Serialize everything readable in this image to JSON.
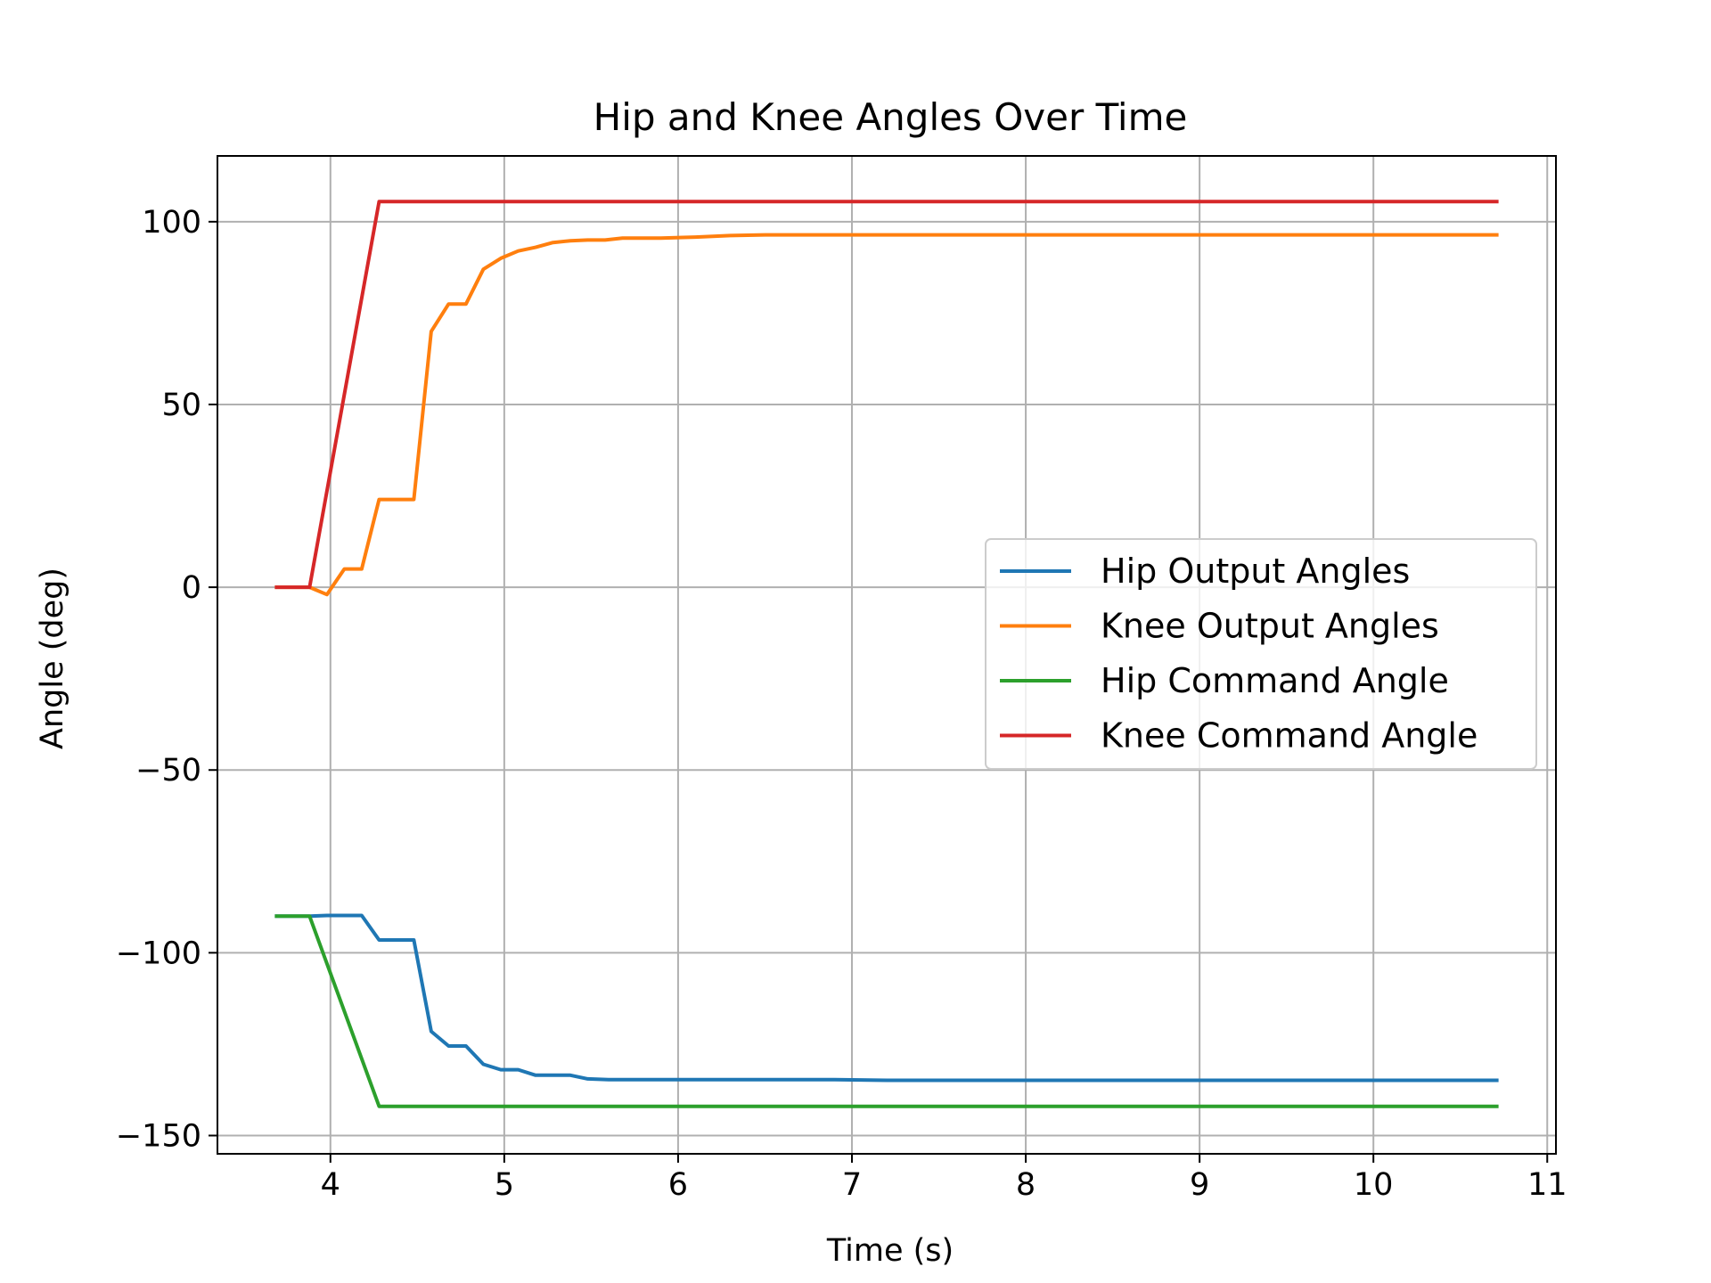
{
  "chart_data": {
    "type": "line",
    "title": "Hip and Knee Angles Over Time",
    "xlabel": "Time (s)",
    "ylabel": "Angle (deg)",
    "xlim": [
      3.35,
      11.05
    ],
    "ylim": [
      -155,
      118
    ],
    "xticks": [
      4,
      5,
      6,
      7,
      8,
      9,
      10,
      11
    ],
    "yticks": [
      100,
      50,
      0,
      -50,
      -100,
      -150
    ],
    "ytick_labels": [
      "100",
      "50",
      "0",
      "−50",
      "−100",
      "−150"
    ],
    "grid": true,
    "legend_position": "center-right",
    "series": [
      {
        "name": "Hip Output Angles",
        "color": "#1f77b4",
        "points": [
          [
            3.68,
            -90
          ],
          [
            3.88,
            -90
          ],
          [
            3.98,
            -89.8
          ],
          [
            4.18,
            -89.8
          ],
          [
            4.28,
            -96.5
          ],
          [
            4.48,
            -96.5
          ],
          [
            4.58,
            -121.5
          ],
          [
            4.68,
            -125.5
          ],
          [
            4.78,
            -125.5
          ],
          [
            4.88,
            -130.5
          ],
          [
            4.98,
            -132
          ],
          [
            5.08,
            -132
          ],
          [
            5.18,
            -133.5
          ],
          [
            5.38,
            -133.5
          ],
          [
            5.48,
            -134.5
          ],
          [
            5.6,
            -134.7
          ],
          [
            6.9,
            -134.7
          ],
          [
            7.2,
            -134.9
          ],
          [
            10.72,
            -134.9
          ]
        ]
      },
      {
        "name": "Knee Output Angles",
        "color": "#ff7f0e",
        "points": [
          [
            3.68,
            0
          ],
          [
            3.88,
            0
          ],
          [
            3.98,
            -2
          ],
          [
            4.08,
            5
          ],
          [
            4.18,
            5
          ],
          [
            4.28,
            24
          ],
          [
            4.48,
            24
          ],
          [
            4.58,
            70
          ],
          [
            4.68,
            77.5
          ],
          [
            4.78,
            77.5
          ],
          [
            4.88,
            87
          ],
          [
            4.98,
            90
          ],
          [
            5.08,
            92
          ],
          [
            5.18,
            93
          ],
          [
            5.28,
            94.3
          ],
          [
            5.38,
            94.8
          ],
          [
            5.48,
            95
          ],
          [
            5.58,
            95
          ],
          [
            5.68,
            95.5
          ],
          [
            5.9,
            95.5
          ],
          [
            6.1,
            95.8
          ],
          [
            6.3,
            96.2
          ],
          [
            6.5,
            96.4
          ],
          [
            10.72,
            96.4
          ]
        ]
      },
      {
        "name": "Hip Command Angle",
        "color": "#2ca02c",
        "points": [
          [
            3.68,
            -90
          ],
          [
            3.88,
            -90
          ],
          [
            4.28,
            -142
          ],
          [
            10.72,
            -142
          ]
        ]
      },
      {
        "name": "Knee Command Angle",
        "color": "#d62728",
        "points": [
          [
            3.68,
            0
          ],
          [
            3.88,
            0
          ],
          [
            4.28,
            105.5
          ],
          [
            10.72,
            105.5
          ]
        ]
      }
    ]
  }
}
